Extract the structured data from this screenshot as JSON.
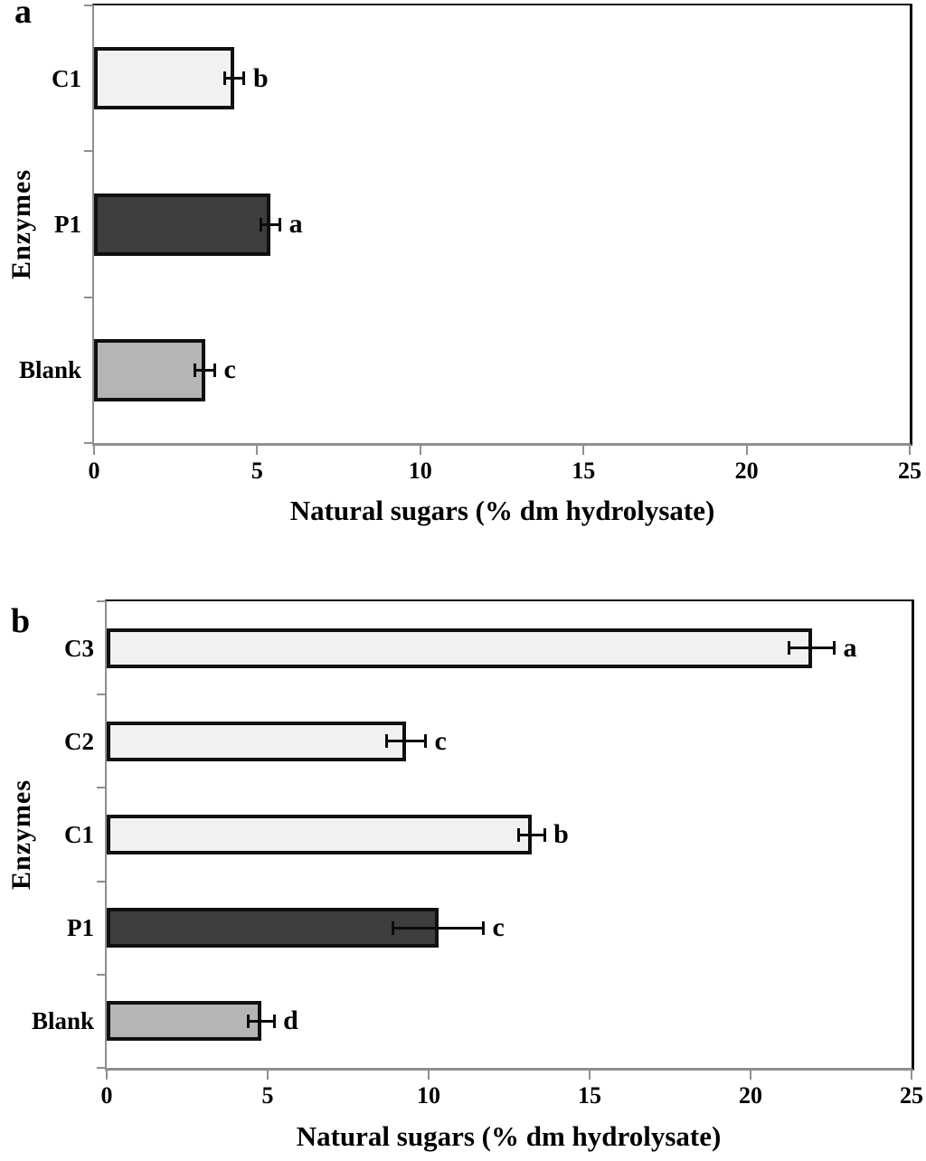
{
  "figure": {
    "background": "#ffffff",
    "axis_color": "#8f8f8f",
    "frame_color": "#0a0a0a",
    "bar_border_color": "#101010",
    "note": "Two-panel horizontal bar chart; error bars are ± values; letters are significance groups"
  },
  "chart_data": [
    {
      "type": "bar",
      "orientation": "horizontal",
      "panel_label": "a",
      "title": "",
      "xlabel": "Natural sugars (% dm hydrolysate)",
      "ylabel": "Enzymes",
      "xlim": [
        0,
        25
      ],
      "x_ticks": [
        0,
        5,
        10,
        15,
        20,
        25
      ],
      "grid": false,
      "legend": false,
      "categories": [
        "C1",
        "P1",
        "Blank"
      ],
      "values": [
        4.3,
        5.4,
        3.4
      ],
      "errors": [
        0.3,
        0.3,
        0.3
      ],
      "sig_letters": [
        "b",
        "a",
        "c"
      ],
      "bar_colors": [
        "#f1f1f1",
        "#3e3e3e",
        "#b5b5b5"
      ]
    },
    {
      "type": "bar",
      "orientation": "horizontal",
      "panel_label": "b",
      "title": "",
      "xlabel": "Natural sugars (% dm hydrolysate)",
      "ylabel": "Enzymes",
      "xlim": [
        0,
        25
      ],
      "x_ticks": [
        0,
        5,
        10,
        15,
        20,
        25
      ],
      "grid": false,
      "legend": false,
      "categories": [
        "C3",
        "C2",
        "C1",
        "P1",
        "Blank"
      ],
      "values": [
        21.9,
        9.3,
        13.2,
        10.3,
        4.8
      ],
      "errors": [
        0.7,
        0.6,
        0.4,
        1.4,
        0.4
      ],
      "sig_letters": [
        "a",
        "c",
        "b",
        "c",
        "d"
      ],
      "bar_colors": [
        "#f1f1f1",
        "#f1f1f1",
        "#f1f1f1",
        "#3e3e3e",
        "#b5b5b5"
      ]
    }
  ]
}
